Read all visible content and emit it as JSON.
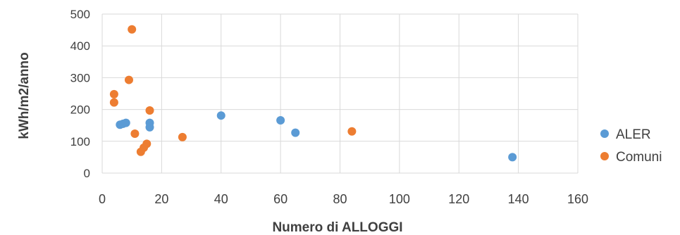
{
  "chart_data": {
    "type": "scatter",
    "title": "",
    "xlabel": "Numero di ALLOGGI",
    "ylabel": "kWh/m2/anno",
    "xlim": [
      0,
      160
    ],
    "ylim": [
      0,
      500
    ],
    "x_ticks": [
      0,
      20,
      40,
      60,
      80,
      100,
      120,
      140,
      160
    ],
    "y_ticks": [
      0,
      100,
      200,
      300,
      400,
      500
    ],
    "grid": true,
    "legend_position": "right",
    "series": [
      {
        "name": "ALER",
        "color": "#5b9bd5",
        "points": [
          {
            "x": 6,
            "y": 152
          },
          {
            "x": 7,
            "y": 155
          },
          {
            "x": 8,
            "y": 158
          },
          {
            "x": 16,
            "y": 158
          },
          {
            "x": 16,
            "y": 144
          },
          {
            "x": 40,
            "y": 181
          },
          {
            "x": 60,
            "y": 166
          },
          {
            "x": 65,
            "y": 127
          },
          {
            "x": 138,
            "y": 50
          }
        ]
      },
      {
        "name": "Comuni",
        "color": "#ed7d31",
        "points": [
          {
            "x": 10,
            "y": 452
          },
          {
            "x": 9,
            "y": 293
          },
          {
            "x": 4,
            "y": 248
          },
          {
            "x": 4,
            "y": 222
          },
          {
            "x": 16,
            "y": 197
          },
          {
            "x": 11,
            "y": 124
          },
          {
            "x": 15,
            "y": 92
          },
          {
            "x": 14,
            "y": 80
          },
          {
            "x": 13,
            "y": 67
          },
          {
            "x": 27,
            "y": 113
          },
          {
            "x": 84,
            "y": 131
          }
        ]
      }
    ]
  }
}
